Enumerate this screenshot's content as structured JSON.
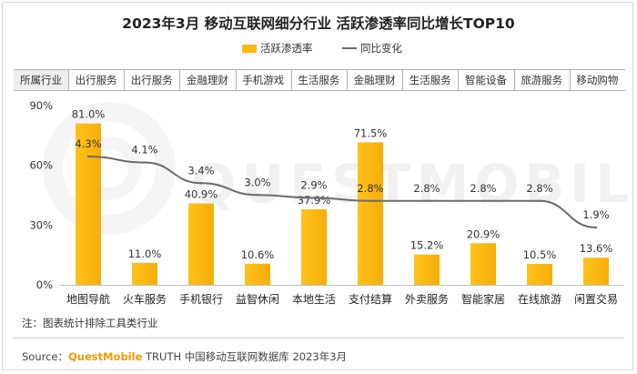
{
  "title": "2023年3月 移动互联网细分行业 活跃渗透率同比增长TOP10",
  "legend": {
    "bar_label": "活跃渗透率",
    "line_label": "同比变化"
  },
  "category_header": "所属行业",
  "industries": [
    "出行服务",
    "出行服务",
    "金融理财",
    "手机游戏",
    "生活服务",
    "金融理财",
    "生活服务",
    "智能设备",
    "旅游服务",
    "移动购物"
  ],
  "watermark": "QUESTMOBILE",
  "note": "注：图表统计排除工具类行业",
  "source": {
    "prefix": "Source：",
    "brand": "QuestMobile",
    "rest": " TRUTH 中国移动互联网数据库 2023年3月"
  },
  "colors": {
    "bar": "#fbb812",
    "line": "#6b6b6b"
  },
  "chart_data": {
    "type": "bar",
    "categories": [
      "地图导航",
      "火车服务",
      "手机银行",
      "益智休闲",
      "本地生活",
      "支付结算",
      "外卖服务",
      "智能家居",
      "在线旅游",
      "闲置交易"
    ],
    "series": [
      {
        "name": "活跃渗透率",
        "type": "bar",
        "values": [
          81.0,
          11.0,
          40.9,
          10.6,
          37.9,
          71.5,
          15.2,
          20.9,
          10.5,
          13.6
        ],
        "labels": [
          "81.0%",
          "11.0%",
          "40.9%",
          "10.6%",
          "37.9%",
          "71.5%",
          "15.2%",
          "20.9%",
          "10.5%",
          "13.6%"
        ]
      },
      {
        "name": "同比变化",
        "type": "line",
        "values": [
          4.3,
          4.1,
          3.4,
          3.0,
          2.9,
          2.8,
          2.8,
          2.8,
          2.8,
          1.9
        ],
        "labels": [
          "4.3%",
          "4.1%",
          "3.4%",
          "3.0%",
          "2.9%",
          "2.8%",
          "2.8%",
          "2.8%",
          "2.8%",
          "1.9%"
        ]
      }
    ],
    "y_ticks": [
      "0%",
      "30%",
      "60%",
      "90%"
    ],
    "ylim": [
      0,
      90
    ],
    "xlabel": "",
    "ylabel": ""
  }
}
